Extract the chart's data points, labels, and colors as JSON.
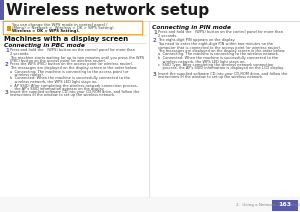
{
  "title": "Wireless network setup",
  "title_color": "#1a1a1a",
  "left_accent_color": "#5a5aaa",
  "content_bg": "#ffffff",
  "note_bg": "#fffdf5",
  "note_border": "#d4950a",
  "divider_color": "#cccccc",
  "body_text_color": "#444444",
  "bold_color": "#111111",
  "num_color": "#6666aa",
  "section_title": "Machines with a display screen",
  "subsection_pbc": "Connecting in PBC mode",
  "subsection_pin": "Connecting in PIN mode",
  "footer_text": "2.  Using a Network-Connected Machine",
  "page_num": "163",
  "footer_bg": "#5a5aaa",
  "footer_text_color": "#ffffff",
  "footer_label_color": "#888888"
}
